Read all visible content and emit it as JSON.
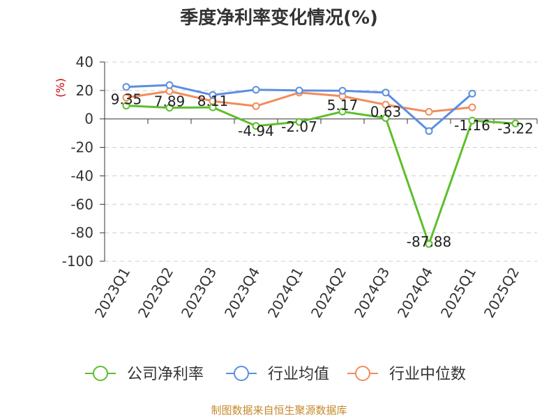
{
  "chart_data": {
    "type": "line",
    "title": "季度净利率变化情况(%)",
    "ylabel": "(%)",
    "ylim": [
      -100,
      40
    ],
    "yticks": [
      40,
      20,
      0,
      -20,
      -40,
      -60,
      -80,
      -100
    ],
    "grid": true,
    "legend_position": "bottom",
    "categories": [
      "2023Q1",
      "2023Q2",
      "2023Q3",
      "2023Q4",
      "2024Q1",
      "2024Q2",
      "2024Q3",
      "2024Q4",
      "2025Q1",
      "2025Q2"
    ],
    "series": [
      {
        "name": "公司净利率",
        "color": "#5cbf2a",
        "values": [
          9.35,
          7.89,
          8.11,
          -4.94,
          -2.07,
          5.17,
          0.63,
          -87.88,
          -1.16,
          -3.22
        ],
        "labels": [
          "9.35",
          "7.89",
          "8.11",
          "-4.94",
          "-2.07",
          "5.17",
          "0.63",
          "-87.88",
          "-1.16",
          "-3.22"
        ]
      },
      {
        "name": "行业均值",
        "color": "#5b8ee0",
        "values": [
          22.5,
          23.8,
          16.8,
          20.5,
          20,
          19.8,
          18.5,
          -8.5,
          17.8,
          null
        ]
      },
      {
        "name": "行业中位数",
        "color": "#f28c5a",
        "values": [
          15,
          19.5,
          12.5,
          9,
          18.5,
          16,
          10,
          5,
          8.2,
          null
        ]
      }
    ],
    "source": "制图数据来自恒生聚源数据库"
  }
}
